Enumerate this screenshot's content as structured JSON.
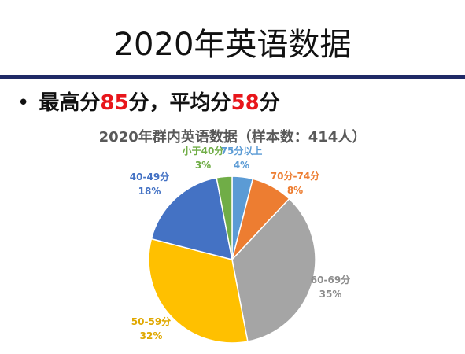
{
  "slide": {
    "title": "2020年英语数据",
    "bullet": {
      "prefix": "最高分",
      "max_score": "85",
      "middle": "分，平均分",
      "avg_score": "58",
      "suffix": "分"
    }
  },
  "chart_data": {
    "type": "pie",
    "title": "2020年群内英语数据（样本数：414人）",
    "slices": [
      {
        "label": "75分以上",
        "value": 4,
        "percent_label": "4%",
        "color": "#5b9bd5"
      },
      {
        "label": "70分-74分",
        "value": 8,
        "percent_label": "8%",
        "color": "#ed7d31"
      },
      {
        "label": "60-69分",
        "value": 35,
        "percent_label": "35%",
        "color": "#a5a5a5"
      },
      {
        "label": "50-59分",
        "value": 32,
        "percent_label": "32%",
        "color": "#ffc000"
      },
      {
        "label": "40-49分",
        "value": 18,
        "percent_label": "18%",
        "color": "#4472c4"
      },
      {
        "label": "小于40分",
        "value": 3,
        "percent_label": "3%",
        "color": "#70ad47"
      }
    ]
  }
}
